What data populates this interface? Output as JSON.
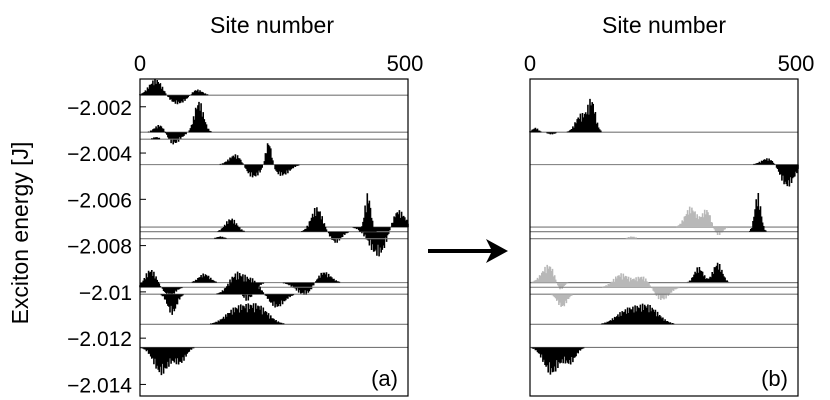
{
  "chart_data": [
    {
      "type": "line",
      "panel_label": "(a)",
      "xlabel": "Site number",
      "ylabel": "Exciton energy [J]",
      "xlim": [
        0,
        500
      ],
      "ylim": [
        -2.0145,
        -2.0008
      ],
      "x_ticks": [
        "0",
        "500"
      ],
      "y_ticks": [
        {
          "value": -2.002,
          "label": "−2.002"
        },
        {
          "value": -2.004,
          "label": "−2.004"
        },
        {
          "value": -2.006,
          "label": "−2.006"
        },
        {
          "value": -2.008,
          "label": "−2.008"
        },
        {
          "value": -2.01,
          "label": "−2.01"
        },
        {
          "value": -2.012,
          "label": "−2.012"
        },
        {
          "value": -2.014,
          "label": "−2.014"
        }
      ],
      "grid": false,
      "series": [
        {
          "energy": -2.0015,
          "color": "#000000",
          "bumps": [
            [
              30,
              18,
              0.00075
            ],
            [
              70,
              25,
              -0.0004
            ],
            [
              105,
              15,
              0.0003
            ]
          ]
        },
        {
          "energy": -2.0031,
          "color": "#000000",
          "bumps": [
            [
              60,
              20,
              -0.0006
            ],
            [
              110,
              12,
              0.0014
            ],
            [
              40,
              15,
              0.0005
            ]
          ]
        },
        {
          "energy": -2.0034,
          "color": "#000000",
          "bumps": [
            [
              30,
              8,
              0.0001
            ]
          ]
        },
        {
          "energy": -2.0045,
          "color": "#000000",
          "bumps": [
            [
              180,
              18,
              0.0005
            ],
            [
              210,
              20,
              -0.0006
            ],
            [
              240,
              8,
              0.0012
            ],
            [
              265,
              20,
              -0.0005
            ]
          ]
        },
        {
          "energy": -2.0072,
          "color": "#000000",
          "bumps": [
            [
              445,
              25,
              -0.0013
            ],
            [
              480,
              18,
              0.0009
            ]
          ]
        },
        {
          "energy": -2.0074,
          "color": "#000000",
          "bumps": [
            [
              170,
              15,
              0.0006
            ],
            [
              330,
              15,
              0.0011
            ],
            [
              365,
              15,
              -0.0005
            ],
            [
              425,
              8,
              0.0017
            ]
          ]
        },
        {
          "energy": -2.0077,
          "color": "#000000",
          "bumps": [
            [
              150,
              10,
              0.0001
            ]
          ]
        },
        {
          "energy": -2.0096,
          "color": "#000000",
          "bumps": [
            [
              120,
              15,
              0.0004
            ],
            [
              200,
              18,
              -0.0008
            ],
            [
              310,
              25,
              -0.0006
            ],
            [
              340,
              20,
              0.0006
            ]
          ]
        },
        {
          "energy": -2.0098,
          "color": "#000000",
          "bumps": [
            [
              20,
              15,
              0.0008
            ],
            [
              55,
              15,
              -0.0004
            ]
          ]
        },
        {
          "energy": -2.0101,
          "color": "#000000",
          "bumps": [
            [
              60,
              12,
              -0.0009
            ],
            [
              180,
              20,
              0.0009
            ],
            [
              210,
              20,
              0.0006
            ],
            [
              255,
              20,
              -0.0006
            ]
          ]
        },
        {
          "energy": -2.0114,
          "color": "#000000",
          "bumps": [
            [
              180,
              28,
              0.0007
            ],
            [
              220,
              28,
              0.0008
            ]
          ]
        },
        {
          "energy": -2.0124,
          "color": "#000000",
          "bumps": [
            [
              40,
              20,
              -0.0012
            ],
            [
              75,
              15,
              -0.0007
            ]
          ]
        }
      ]
    },
    {
      "type": "line",
      "panel_label": "(b)",
      "xlabel": "Site number",
      "xlim": [
        0,
        500
      ],
      "ylim": [
        -2.0145,
        -2.0008
      ],
      "x_ticks": [
        "0",
        "500"
      ],
      "grid": false,
      "series": [
        {
          "energy": -2.0031,
          "color": "#000000",
          "bumps": [
            [
              10,
              8,
              0.0002
            ],
            [
              40,
              10,
              -0.0001
            ],
            [
              95,
              14,
              0.0008
            ],
            [
              115,
              10,
              0.0014
            ]
          ]
        },
        {
          "energy": -2.0045,
          "color": "#000000",
          "bumps": [
            [
              445,
              18,
              0.0003
            ],
            [
              480,
              18,
              -0.001
            ]
          ]
        },
        {
          "energy": -2.0072,
          "color": "#b8b8b8",
          "bumps": [
            [
              300,
              15,
              0.0009
            ],
            [
              330,
              12,
              0.0008
            ],
            [
              350,
              12,
              -0.0004
            ]
          ]
        },
        {
          "energy": -2.0074,
          "color": "#000000",
          "bumps": [
            [
              425,
              8,
              0.0017
            ]
          ]
        },
        {
          "energy": -2.0077,
          "color": "#b8b8b8",
          "bumps": [
            [
              190,
              10,
              0.0001
            ]
          ]
        },
        {
          "energy": -2.0096,
          "color": "#000000",
          "bumps": [
            [
              315,
              12,
              0.0007
            ],
            [
              350,
              12,
              0.0009
            ]
          ]
        },
        {
          "energy": -2.0096,
          "color": "#b8b8b8",
          "bumps": [
            [
              35,
              18,
              0.0008
            ],
            [
              55,
              10,
              -0.0005
            ]
          ]
        },
        {
          "energy": -2.0098,
          "color": "#b8b8b8",
          "bumps": [
            [
              170,
              20,
              0.0006
            ],
            [
              210,
              20,
              0.0005
            ],
            [
              245,
              20,
              -0.0006
            ]
          ]
        },
        {
          "energy": -2.0101,
          "color": "#b8b8b8",
          "bumps": [
            [
              60,
              12,
              -0.0006
            ]
          ]
        },
        {
          "energy": -2.0114,
          "color": "#000000",
          "bumps": [
            [
              180,
              28,
              0.0006
            ],
            [
              220,
              28,
              0.0008
            ]
          ]
        },
        {
          "energy": -2.0124,
          "color": "#000000",
          "bumps": [
            [
              40,
              20,
              -0.0012
            ],
            [
              75,
              15,
              -0.0007
            ]
          ]
        }
      ]
    }
  ]
}
